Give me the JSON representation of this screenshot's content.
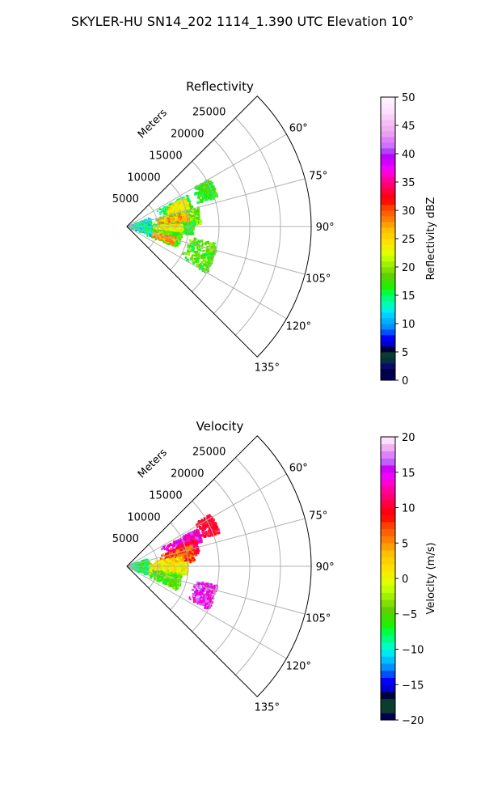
{
  "figure": {
    "title": "SKYLER-HU  SN14_202  1114_1.390 UTC Elevation 10°"
  },
  "chart_data": [
    {
      "type": "heatmap",
      "subtype": "polar-sector (PPI)",
      "title": "Reflectivity",
      "radial_label": "Meters",
      "radial_ticks": [
        {
          "value": 5000,
          "label": "5000"
        },
        {
          "value": 10000,
          "label": "10000"
        },
        {
          "value": 15000,
          "label": "15000"
        },
        {
          "value": 20000,
          "label": "20000"
        },
        {
          "value": 25000,
          "label": "25000"
        }
      ],
      "r_max": 30000,
      "azimuth_range": [
        45,
        135
      ],
      "azimuth_ticks": [
        {
          "value": 60,
          "label": "60°"
        },
        {
          "value": 75,
          "label": "75°"
        },
        {
          "value": 90,
          "label": "90°"
        },
        {
          "value": 105,
          "label": "105°"
        },
        {
          "value": 120,
          "label": "120°"
        },
        {
          "value": 135,
          "label": "135°"
        }
      ],
      "colorbar": {
        "label": "Reflectivity dBZ",
        "range": [
          0,
          50
        ],
        "ticks": [
          {
            "value": 0,
            "label": "0"
          },
          {
            "value": 5,
            "label": "5"
          },
          {
            "value": 10,
            "label": "10"
          },
          {
            "value": 15,
            "label": "15"
          },
          {
            "value": 20,
            "label": "20"
          },
          {
            "value": 25,
            "label": "25"
          },
          {
            "value": 30,
            "label": "30"
          },
          {
            "value": 35,
            "label": "35"
          },
          {
            "value": 40,
            "label": "40"
          },
          {
            "value": 45,
            "label": "45"
          },
          {
            "value": 50,
            "label": "50"
          }
        ],
        "colors": [
          "#000050",
          "#00004a",
          "#0a0a6a",
          "#063040",
          "#0b3d2e",
          "#00003c",
          "#0000cc",
          "#0000ff",
          "#0050ff",
          "#0090ff",
          "#00b0ff",
          "#00d0ff",
          "#00f0e8",
          "#00ff b0",
          "#00ff80",
          "#00ff40",
          "#20f000",
          "#40e000",
          "#60d000",
          "#80e000",
          "#a0f000",
          "#c0ff00",
          "#e0ff00",
          "#f0f000",
          "#ffe000",
          "#ffd000",
          "#ffc000",
          "#ffa000",
          "#ff8000",
          "#ff6000",
          "#ff4000",
          "#ff1000",
          "#ff0010",
          "#ff0040",
          "#ff0070",
          "#ff00a0",
          "#ff00d0",
          "#f000ff",
          "#d000ff",
          "#c000ff",
          "#b040ff",
          "#d070ff",
          "#e080ff",
          "#e8a0f0",
          "#f0b0f0",
          "#f4c0f4",
          "#f8d0f8",
          "#fce0fc",
          "#fde8fd",
          "#fff0ff"
        ]
      },
      "echo_regions": [
        {
          "az": [
            62,
            75
          ],
          "r": [
            5500,
            11000
          ],
          "value": 16
        },
        {
          "az": [
            64,
            74
          ],
          "r": [
            7000,
            10500
          ],
          "value": 24
        },
        {
          "az": [
            75,
            88
          ],
          "r": [
            4000,
            12000
          ],
          "value": 19
        },
        {
          "az": [
            78,
            86
          ],
          "r": [
            5000,
            10000
          ],
          "value": 27
        },
        {
          "az": [
            86,
            97
          ],
          "r": [
            2000,
            11000
          ],
          "value": 17
        },
        {
          "az": [
            88,
            95
          ],
          "r": [
            4000,
            9000
          ],
          "value": 24
        },
        {
          "az": [
            97,
            112
          ],
          "r": [
            1500,
            9000
          ],
          "value": 18
        },
        {
          "az": [
            103,
            110
          ],
          "r": [
            4000,
            8000
          ],
          "value": 27
        },
        {
          "az": [
            70,
            110
          ],
          "r": [
            0,
            4000
          ],
          "value": 13
        },
        {
          "az": [
            100,
            120
          ],
          "r": [
            10000,
            15000
          ],
          "value": 18
        },
        {
          "az": [
            60,
            72
          ],
          "r": [
            12000,
            15500
          ],
          "value": 17
        }
      ]
    },
    {
      "type": "heatmap",
      "subtype": "polar-sector (PPI)",
      "title": "Velocity",
      "radial_label": "Meters",
      "radial_ticks": [
        {
          "value": 5000,
          "label": "5000"
        },
        {
          "value": 10000,
          "label": "10000"
        },
        {
          "value": 15000,
          "label": "15000"
        },
        {
          "value": 20000,
          "label": "20000"
        },
        {
          "value": 25000,
          "label": "25000"
        }
      ],
      "r_max": 30000,
      "azimuth_range": [
        45,
        135
      ],
      "azimuth_ticks": [
        {
          "value": 60,
          "label": "60°"
        },
        {
          "value": 75,
          "label": "75°"
        },
        {
          "value": 90,
          "label": "90°"
        },
        {
          "value": 105,
          "label": "105°"
        },
        {
          "value": 120,
          "label": "120°"
        },
        {
          "value": 135,
          "label": "135°"
        }
      ],
      "colorbar": {
        "label": "Velocity (m/s)",
        "range": [
          -20,
          20
        ],
        "ticks": [
          {
            "value": -20,
            "label": "−20"
          },
          {
            "value": -15,
            "label": "−15"
          },
          {
            "value": -10,
            "label": "−10"
          },
          {
            "value": -5,
            "label": "−5"
          },
          {
            "value": 0,
            "label": "0"
          },
          {
            "value": 5,
            "label": "5"
          },
          {
            "value": 10,
            "label": "10"
          },
          {
            "value": 15,
            "label": "15"
          },
          {
            "value": 20,
            "label": "20"
          }
        ],
        "colors": [
          "#000050",
          "#0b3d2e",
          "#0b3d2e",
          "#00003c",
          "#0000cc",
          "#0000ff",
          "#0050ff",
          "#0090ff",
          "#00c0ff",
          "#00e8f0",
          "#00ffc0",
          "#00ff80",
          "#00ff40",
          "#20f000",
          "#40e000",
          "#60d000",
          "#80e000",
          "#a0f000",
          "#c0ff00",
          "#e0ff00",
          "#f0f000",
          "#ffe000",
          "#ffd000",
          "#ffc000",
          "#ffa000",
          "#ff8000",
          "#ff6000",
          "#ff4000",
          "#ff1000",
          "#ff0010",
          "#ff0040",
          "#ff0070",
          "#ff00a0",
          "#ff00d0",
          "#f000ff",
          "#d000ff",
          "#c060ff",
          "#e080ff",
          "#f0b0f0",
          "#fde0fd"
        ]
      },
      "echo_regions": [
        {
          "az": [
            62,
            72
          ],
          "r": [
            6000,
            13000
          ],
          "value": 14
        },
        {
          "az": [
            68,
            80
          ],
          "r": [
            7000,
            12000
          ],
          "value": 10
        },
        {
          "az": [
            72,
            86
          ],
          "r": [
            5000,
            11000
          ],
          "value": 7
        },
        {
          "az": [
            80,
            92
          ],
          "r": [
            3000,
            9000
          ],
          "value": 2
        },
        {
          "az": [
            86,
            98
          ],
          "r": [
            2000,
            10000
          ],
          "value": 0
        },
        {
          "az": [
            98,
            112
          ],
          "r": [
            1500,
            9000
          ],
          "value": -3
        },
        {
          "az": [
            100,
            115
          ],
          "r": [
            4000,
            9000
          ],
          "value": -5
        },
        {
          "az": [
            70,
            112
          ],
          "r": [
            0,
            3500
          ],
          "value": -8
        },
        {
          "az": [
            102,
            118
          ],
          "r": [
            11000,
            15000
          ],
          "value": 15
        },
        {
          "az": [
            58,
            70
          ],
          "r": [
            13000,
            16000
          ],
          "value": 10
        }
      ]
    }
  ]
}
